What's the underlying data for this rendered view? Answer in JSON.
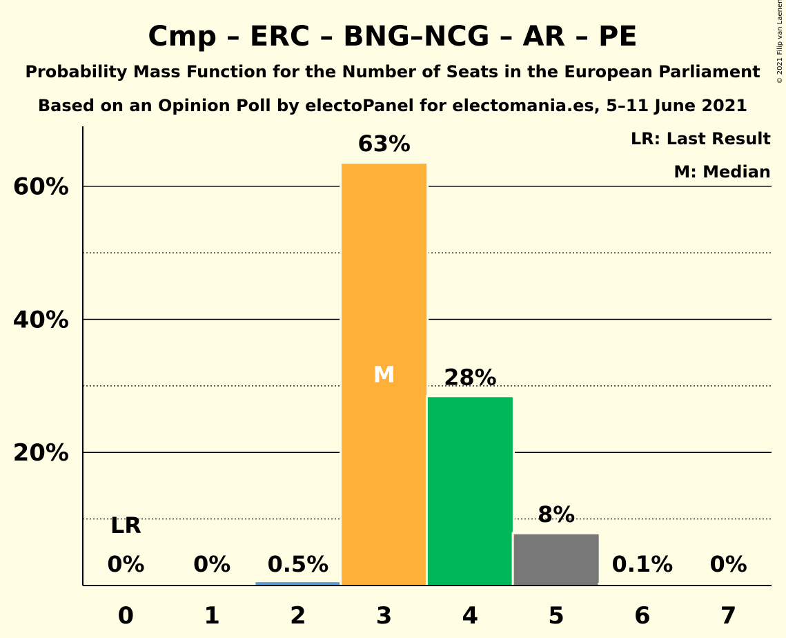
{
  "chart_data": {
    "type": "bar",
    "title": "Cmp – ERC – BNG–NCG – AR – PE",
    "subtitle1": "Probability Mass Function for the Number of Seats in the European Parliament",
    "subtitle2": "Based on an Opinion Poll by electoPanel for electomania.es, 5–11 June 2021",
    "categories": [
      "0",
      "1",
      "2",
      "3",
      "4",
      "5",
      "6",
      "7"
    ],
    "values": [
      0,
      0,
      0.5,
      63.4,
      28.3,
      7.7,
      0.1,
      0
    ],
    "value_labels": [
      "0%",
      "0%",
      "0.5%",
      "63%",
      "28%",
      "8%",
      "0.1%",
      "0%"
    ],
    "bar_colors": [
      "#D9D9D9",
      "#D9D9D9",
      "#5B9BD5",
      "#FFB038",
      "#00B859",
      "#787878",
      "#D9D9D9",
      "#D9D9D9"
    ],
    "ylim": [
      0,
      69
    ],
    "yticks": [
      20,
      40,
      60
    ],
    "ytick_labels": [
      "20%",
      "40%",
      "60%"
    ],
    "minor_gridlines": [
      10,
      30,
      50
    ],
    "last_result_index": 0,
    "last_result_label": "LR",
    "median_index": 3,
    "median_label": "M",
    "legend": [
      "LR: Last Result",
      "M: Median"
    ],
    "legend_position": "top-right",
    "copyright": "© 2021 Filip van Laenen"
  },
  "colors": {
    "background": "#FFFDE3",
    "axis": "#000000"
  }
}
